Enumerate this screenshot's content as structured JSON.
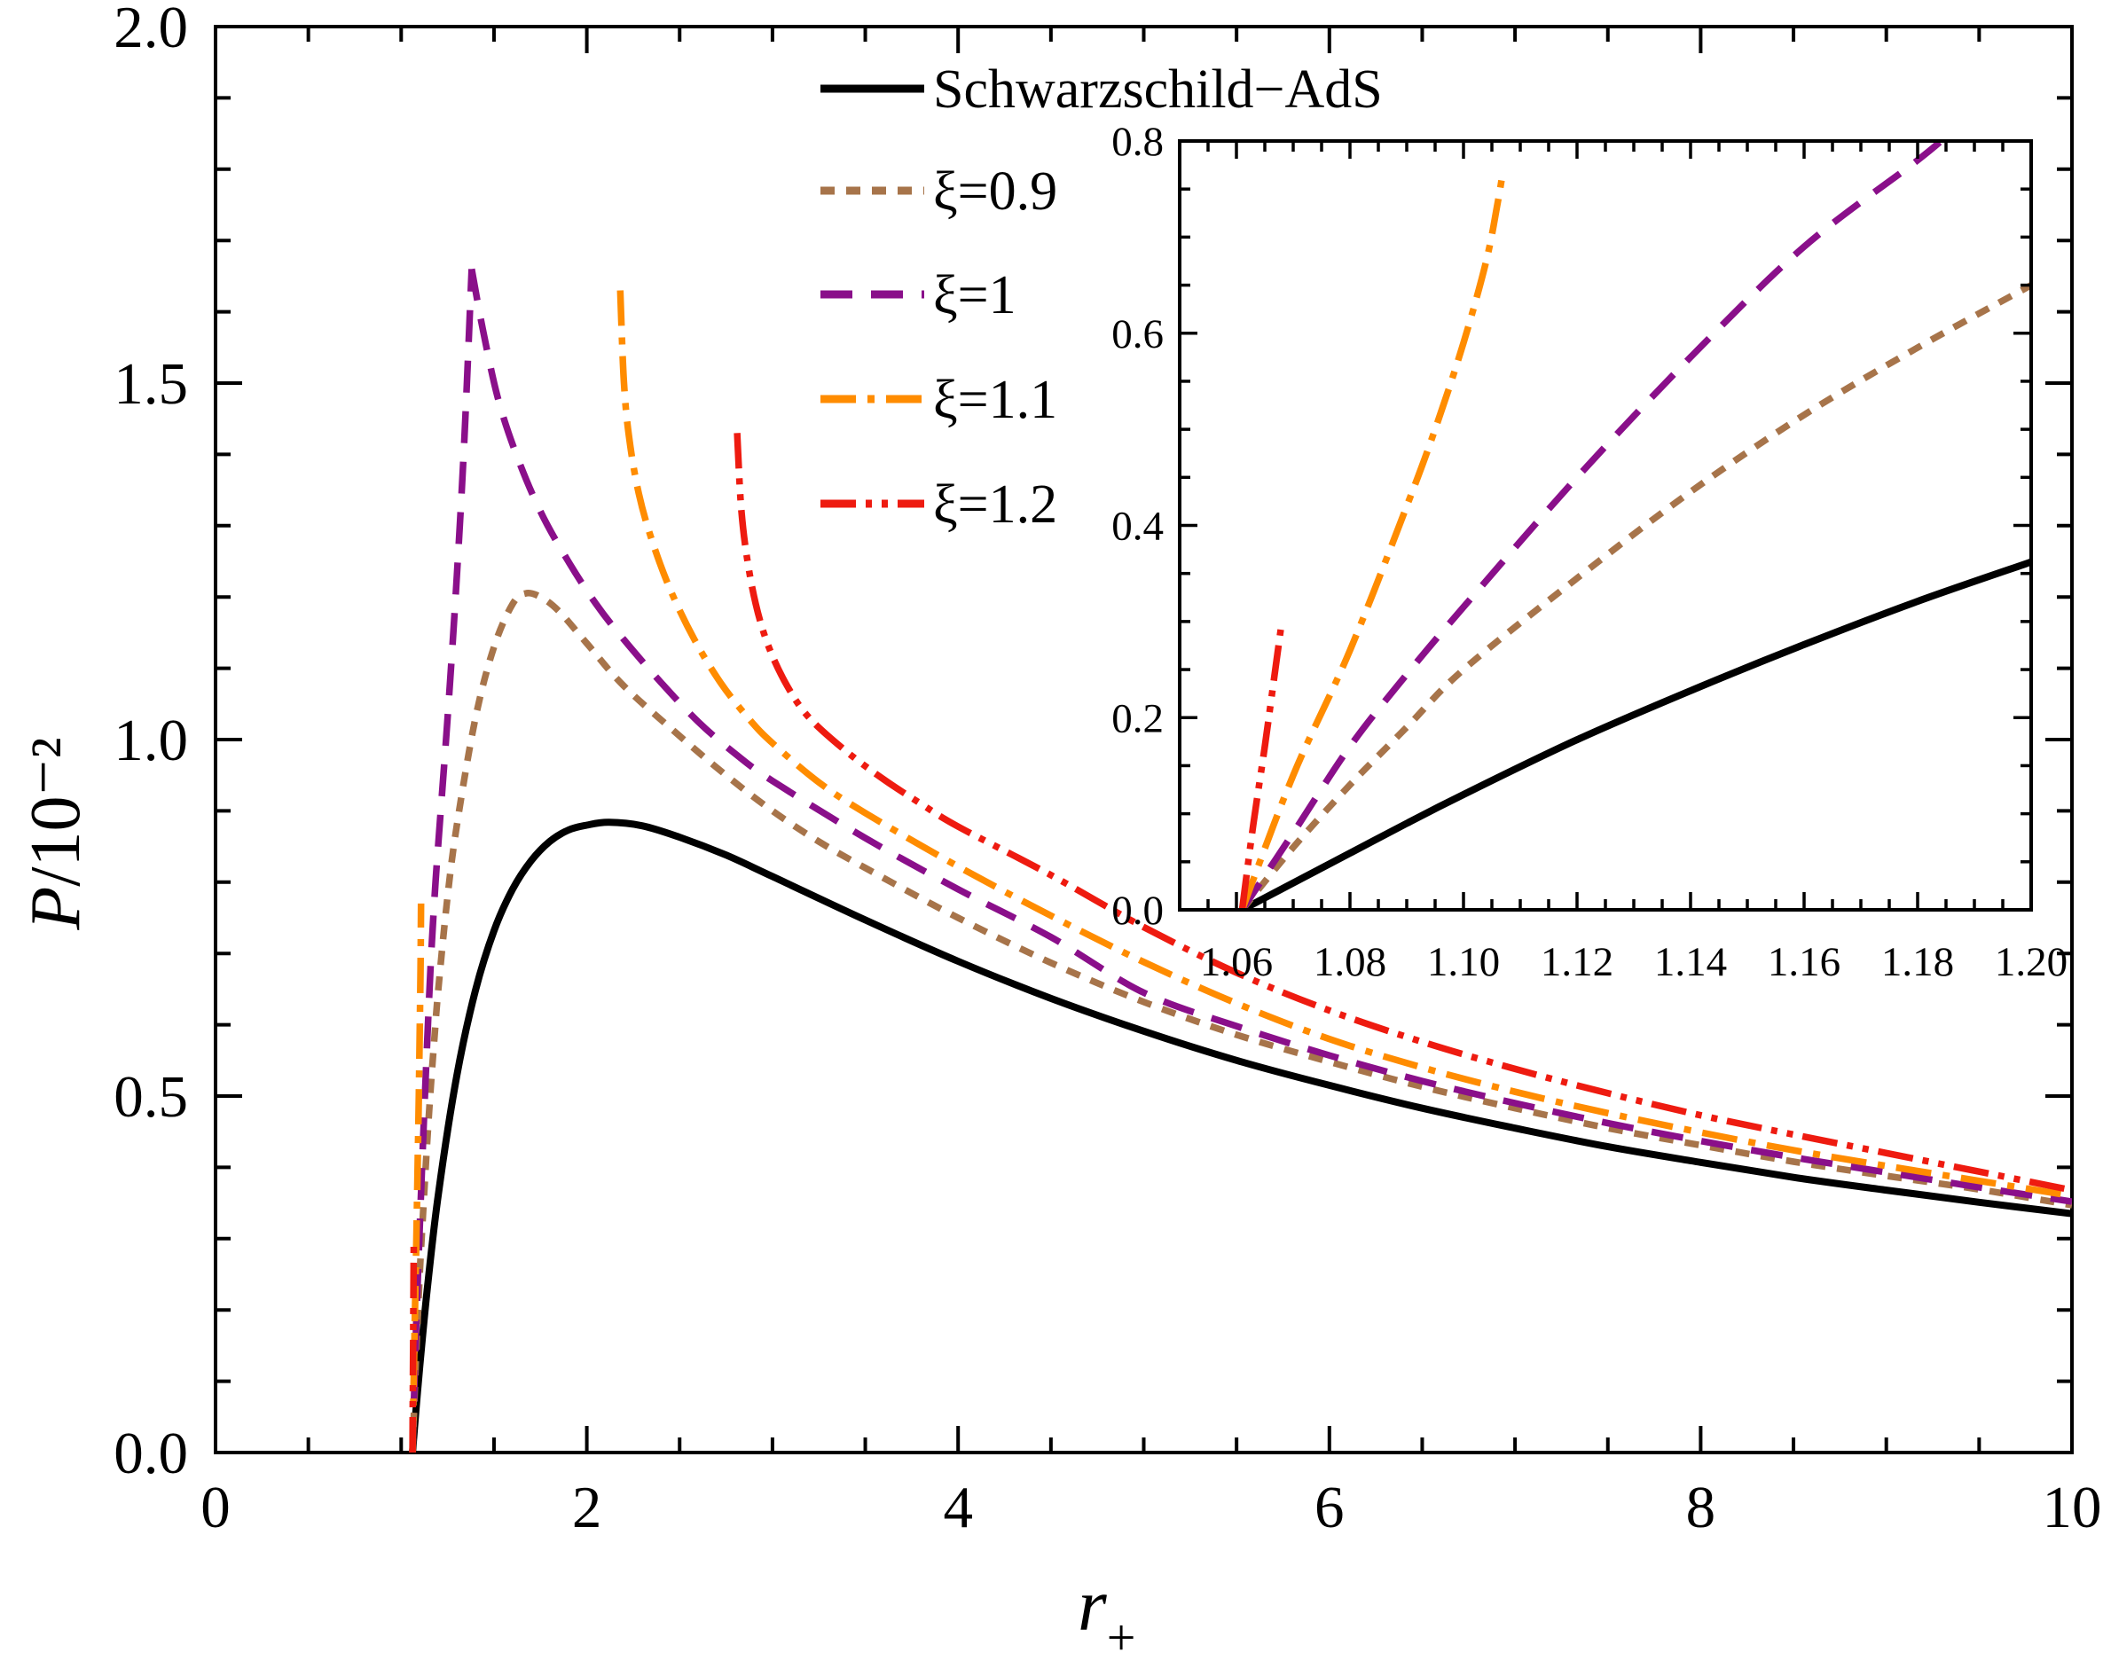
{
  "chart_data": {
    "type": "line",
    "title": "",
    "xlabel": {
      "var": "r",
      "sub": "+"
    },
    "ylabel": {
      "var": "P",
      "rest": "/10⁻²"
    },
    "grid": "off",
    "legend_position": "top-center-inside",
    "main_axis": {
      "xlim": [
        0,
        10
      ],
      "ylim": [
        0,
        2
      ],
      "x_ticks": [
        0,
        2,
        4,
        6,
        8,
        10
      ],
      "x_tick_labels": [
        "0",
        "2",
        "4",
        "6",
        "8",
        "10"
      ],
      "x_minor_step": 0.5,
      "y_ticks": [
        0,
        0.5,
        1,
        1.5,
        2
      ],
      "y_tick_labels": [
        "0.0",
        "0.5",
        "1.0",
        "1.5",
        "2.0"
      ],
      "y_minor_step": 0.1
    },
    "inset_axis": {
      "xlim": [
        1.05,
        1.2
      ],
      "ylim": [
        0,
        0.8
      ],
      "x_ticks": [
        1.06,
        1.08,
        1.1,
        1.12,
        1.14,
        1.16,
        1.18,
        1.2
      ],
      "x_tick_labels": [
        "1.06",
        "1.08",
        "1.10",
        "1.12",
        "1.14",
        "1.16",
        "1.18",
        "1.20"
      ],
      "x_minor_step": 0.005,
      "y_ticks": [
        0,
        0.2,
        0.4,
        0.6,
        0.8
      ],
      "y_tick_labels": [
        "0.0",
        "0.2",
        "0.4",
        "0.6",
        "0.8"
      ],
      "y_minor_step": 0.05
    },
    "series": [
      {
        "id": "schwarzschild-ads",
        "label": "Schwarzschild−AdS",
        "color": "#000000",
        "dash": "solid",
        "segments_main": [
          [
            [
              1.061,
              0
            ],
            [
              1.08,
              0.06
            ],
            [
              1.1,
              0.12
            ],
            [
              1.14,
              0.228
            ],
            [
              1.2,
              0.362
            ],
            [
              1.3,
              0.529
            ],
            [
              1.4,
              0.648
            ],
            [
              1.5,
              0.732
            ],
            [
              1.6,
              0.79
            ],
            [
              1.7,
              0.83
            ],
            [
              1.8,
              0.857
            ],
            [
              1.9,
              0.873
            ],
            [
              2,
              0.88
            ],
            [
              2.12,
              0.884
            ],
            [
              2.3,
              0.879
            ],
            [
              2.5,
              0.863
            ],
            [
              2.75,
              0.838
            ],
            [
              3,
              0.808
            ],
            [
              3.5,
              0.747
            ],
            [
              4,
              0.689
            ],
            [
              4.5,
              0.637
            ],
            [
              5,
              0.591
            ],
            [
              5.5,
              0.55
            ],
            [
              6,
              0.515
            ],
            [
              6.5,
              0.483
            ],
            [
              7,
              0.455
            ],
            [
              7.5,
              0.429
            ],
            [
              8,
              0.407
            ],
            [
              8.5,
              0.386
            ],
            [
              9,
              0.368
            ],
            [
              9.5,
              0.351
            ],
            [
              10,
              0.335
            ]
          ]
        ],
        "segments_inset": [
          [
            [
              1.061,
              0
            ],
            [
              1.07,
              0.028
            ],
            [
              1.08,
              0.059
            ],
            [
              1.09,
              0.09
            ],
            [
              1.1,
              0.12
            ],
            [
              1.12,
              0.177
            ],
            [
              1.14,
              0.228
            ],
            [
              1.16,
              0.276
            ],
            [
              1.18,
              0.321
            ],
            [
              1.2,
              0.362
            ]
          ]
        ]
      },
      {
        "id": "xi-0.9",
        "label": "ξ=0.9",
        "color": "#A7744A",
        "dash": "dotted",
        "segments_main": [
          [
            [
              1.061,
              0
            ],
            [
              1.08,
              0.13
            ],
            [
              1.1,
              0.25
            ],
            [
              1.12,
              0.345
            ],
            [
              1.14,
              0.435
            ],
            [
              1.16,
              0.515
            ],
            [
              1.18,
              0.585
            ],
            [
              1.2,
              0.65
            ],
            [
              1.25,
              0.78
            ],
            [
              1.3,
              0.88
            ],
            [
              1.4,
              1.03
            ],
            [
              1.5,
              1.13
            ],
            [
              1.6,
              1.19
            ],
            [
              1.67,
              1.205
            ],
            [
              1.75,
              1.2
            ],
            [
              1.85,
              1.18
            ],
            [
              2,
              1.135
            ],
            [
              2.2,
              1.075
            ],
            [
              2.5,
              1.005
            ],
            [
              2.75,
              0.95
            ],
            [
              3,
              0.9
            ],
            [
              3.25,
              0.857
            ],
            [
              3.5,
              0.82
            ],
            [
              4,
              0.75
            ],
            [
              4.5,
              0.687
            ],
            [
              5,
              0.632
            ],
            [
              5.5,
              0.586
            ],
            [
              6,
              0.548
            ],
            [
              6.5,
              0.513
            ],
            [
              7,
              0.483
            ],
            [
              7.5,
              0.455
            ],
            [
              8,
              0.431
            ],
            [
              8.5,
              0.408
            ],
            [
              9,
              0.388
            ],
            [
              9.5,
              0.369
            ],
            [
              10,
              0.347
            ]
          ]
        ],
        "segments_inset": [
          [
            [
              1.061,
              0
            ],
            [
              1.07,
              0.065
            ],
            [
              1.08,
              0.13
            ],
            [
              1.09,
              0.19
            ],
            [
              1.1,
              0.25
            ],
            [
              1.12,
              0.345
            ],
            [
              1.14,
              0.435
            ],
            [
              1.16,
              0.515
            ],
            [
              1.18,
              0.585
            ],
            [
              1.2,
              0.65
            ]
          ]
        ]
      },
      {
        "id": "xi-1",
        "label": "ξ=1",
        "color": "#8A0F8A",
        "dash": "dashed",
        "segments_main": [
          [
            [
              1.061,
              0
            ],
            [
              1.08,
              0.17
            ],
            [
              1.1,
              0.315
            ],
            [
              1.12,
              0.45
            ],
            [
              1.14,
              0.575
            ],
            [
              1.16,
              0.69
            ],
            [
              1.18,
              0.78
            ],
            [
              1.2,
              0.855
            ],
            [
              1.25,
              1.03
            ],
            [
              1.3,
              1.23
            ],
            [
              1.34,
              1.42
            ],
            [
              1.38,
              1.66
            ]
          ],
          [
            [
              1.38,
              1.66
            ],
            [
              1.44,
              1.575
            ],
            [
              1.52,
              1.48
            ],
            [
              1.62,
              1.4
            ],
            [
              1.75,
              1.32
            ],
            [
              1.9,
              1.25
            ],
            [
              2.05,
              1.19
            ],
            [
              2.2,
              1.14
            ],
            [
              2.4,
              1.08
            ],
            [
              2.6,
              1.025
            ],
            [
              2.8,
              0.98
            ],
            [
              3,
              0.942
            ],
            [
              3.5,
              0.862
            ],
            [
              4,
              0.79
            ],
            [
              4.5,
              0.723
            ],
            [
              5,
              0.645
            ],
            [
              5.5,
              0.598
            ],
            [
              6,
              0.557
            ],
            [
              6.5,
              0.521
            ],
            [
              7,
              0.49
            ],
            [
              7.5,
              0.462
            ],
            [
              8,
              0.437
            ],
            [
              8.5,
              0.414
            ],
            [
              9,
              0.393
            ],
            [
              9.5,
              0.372
            ],
            [
              10,
              0.352
            ]
          ]
        ],
        "segments_inset": [
          [
            [
              1.061,
              0
            ],
            [
              1.07,
              0.08
            ],
            [
              1.08,
              0.17
            ],
            [
              1.09,
              0.245
            ],
            [
              1.1,
              0.315
            ],
            [
              1.12,
              0.45
            ],
            [
              1.14,
              0.575
            ],
            [
              1.16,
              0.69
            ],
            [
              1.18,
              0.78
            ],
            [
              1.187,
              0.815
            ]
          ]
        ]
      },
      {
        "id": "xi-1.1",
        "label": "ξ=1.1",
        "color": "#FF8C00",
        "dash": "dashdot",
        "segments_main": [
          [
            [
              1.061,
              0
            ],
            [
              1.07,
              0.14
            ],
            [
              1.08,
              0.27
            ],
            [
              1.09,
              0.42
            ],
            [
              1.095,
              0.5
            ],
            [
              1.1,
              0.59
            ],
            [
              1.104,
              0.675
            ],
            [
              1.106,
              0.735
            ],
            [
              1.107,
              0.77
            ]
          ],
          [
            [
              2.18,
              1.63
            ],
            [
              2.2,
              1.5
            ],
            [
              2.23,
              1.42
            ],
            [
              2.28,
              1.345
            ],
            [
              2.35,
              1.28
            ],
            [
              2.45,
              1.21
            ],
            [
              2.58,
              1.14
            ],
            [
              2.72,
              1.08
            ],
            [
              2.87,
              1.03
            ],
            [
              3,
              0.995
            ],
            [
              3.25,
              0.94
            ],
            [
              3.5,
              0.897
            ],
            [
              4,
              0.822
            ],
            [
              4.5,
              0.753
            ],
            [
              5,
              0.688
            ],
            [
              5.5,
              0.63
            ],
            [
              6,
              0.58
            ],
            [
              6.5,
              0.54
            ],
            [
              7,
              0.506
            ],
            [
              7.5,
              0.476
            ],
            [
              8,
              0.449
            ],
            [
              8.5,
              0.424
            ],
            [
              9,
              0.402
            ],
            [
              9.5,
              0.381
            ],
            [
              10,
              0.36
            ]
          ]
        ],
        "segments_inset": [
          [
            [
              1.061,
              0
            ],
            [
              1.07,
              0.14
            ],
            [
              1.08,
              0.27
            ],
            [
              1.09,
              0.42
            ],
            [
              1.095,
              0.5
            ],
            [
              1.1,
              0.59
            ],
            [
              1.104,
              0.675
            ],
            [
              1.106,
              0.735
            ],
            [
              1.107,
              0.77
            ]
          ]
        ]
      },
      {
        "id": "xi-1.2",
        "label": "ξ=1.2",
        "color": "#EE1B10",
        "dash": "dashdotdot",
        "segments_main": [
          [
            [
              1.061,
              0
            ],
            [
              1.063,
              0.09
            ],
            [
              1.065,
              0.17
            ],
            [
              1.0665,
              0.235
            ],
            [
              1.068,
              0.3
            ]
          ],
          [
            [
              2.81,
              1.43
            ],
            [
              2.83,
              1.33
            ],
            [
              2.86,
              1.26
            ],
            [
              2.91,
              1.19
            ],
            [
              2.98,
              1.13
            ],
            [
              3.08,
              1.075
            ],
            [
              3.2,
              1.03
            ],
            [
              3.4,
              0.983
            ],
            [
              3.6,
              0.944
            ],
            [
              3.8,
              0.91
            ],
            [
              4,
              0.878
            ],
            [
              4.5,
              0.81
            ],
            [
              5,
              0.737
            ],
            [
              5.5,
              0.673
            ],
            [
              6,
              0.62
            ],
            [
              6.5,
              0.576
            ],
            [
              7,
              0.538
            ],
            [
              7.5,
              0.504
            ],
            [
              8,
              0.473
            ],
            [
              8.5,
              0.446
            ],
            [
              9,
              0.42
            ],
            [
              9.5,
              0.394
            ],
            [
              10,
              0.368
            ]
          ]
        ],
        "segments_inset": [
          [
            [
              1.061,
              0
            ],
            [
              1.063,
              0.09
            ],
            [
              1.065,
              0.17
            ],
            [
              1.0665,
              0.235
            ],
            [
              1.068,
              0.3
            ]
          ]
        ]
      }
    ]
  }
}
